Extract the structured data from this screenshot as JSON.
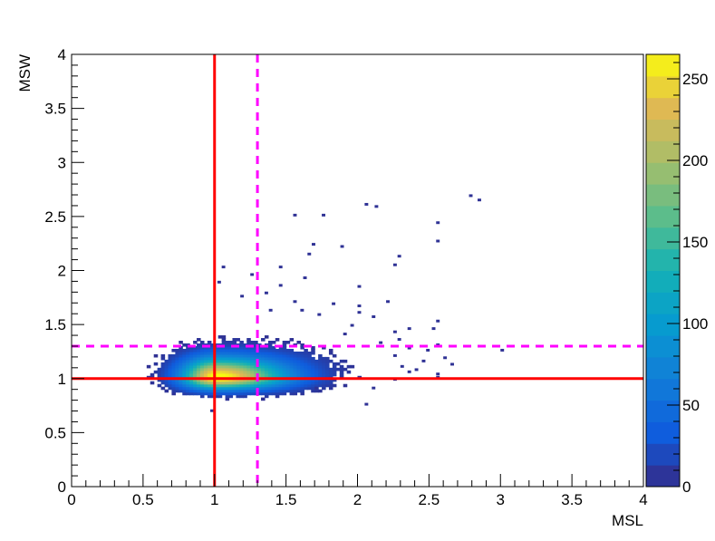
{
  "chart_data": {
    "type": "heatmap",
    "title": "",
    "xlabel": "MSL",
    "ylabel": "MSW",
    "xlim": [
      0,
      4
    ],
    "ylim": [
      0,
      4
    ],
    "x_ticks": [
      "0",
      "0.5",
      "1",
      "1.5",
      "2",
      "2.5",
      "3",
      "3.5",
      "4"
    ],
    "y_ticks": [
      "0",
      "0.5",
      "1",
      "1.5",
      "2",
      "2.5",
      "3",
      "3.5",
      "4"
    ],
    "colorbar": {
      "range": [
        0,
        265
      ],
      "ticks": [
        "0",
        "50",
        "100",
        "150",
        "200",
        "250"
      ]
    },
    "cut_lines": [
      {
        "orientation": "vertical",
        "value": 1.0,
        "style": "solid",
        "color": "#ff0000"
      },
      {
        "orientation": "horizontal",
        "value": 1.0,
        "style": "solid",
        "color": "#ff0000"
      },
      {
        "orientation": "vertical",
        "value": 1.3,
        "style": "dashed",
        "color": "#ff00ff"
      },
      {
        "orientation": "horizontal",
        "value": 1.3,
        "style": "dashed",
        "color": "#ff00ff"
      }
    ],
    "peak": {
      "x": 1.0,
      "y": 1.0,
      "count": 265
    },
    "outlier_points": [
      [
        2.78,
        2.68
      ],
      [
        2.84,
        2.64
      ],
      [
        2.05,
        2.6
      ],
      [
        2.12,
        2.58
      ],
      [
        1.55,
        2.5
      ],
      [
        1.75,
        2.5
      ],
      [
        2.55,
        2.43
      ],
      [
        2.55,
        2.26
      ],
      [
        1.68,
        2.23
      ],
      [
        1.88,
        2.21
      ],
      [
        1.65,
        2.14
      ],
      [
        2.28,
        2.12
      ],
      [
        2.25,
        2.04
      ],
      [
        1.45,
        2.02
      ],
      [
        1.05,
        2.02
      ],
      [
        1.25,
        1.95
      ],
      [
        1.62,
        1.92
      ],
      [
        1.02,
        1.88
      ],
      [
        1.45,
        1.85
      ],
      [
        2.0,
        1.84
      ],
      [
        1.35,
        1.78
      ],
      [
        1.18,
        1.75
      ],
      [
        1.55,
        1.7
      ],
      [
        2.2,
        1.7
      ],
      [
        1.82,
        1.68
      ],
      [
        2.0,
        1.66
      ],
      [
        1.38,
        1.62
      ],
      [
        2.0,
        1.6
      ],
      [
        1.72,
        1.58
      ],
      [
        2.1,
        1.56
      ],
      [
        2.55,
        1.52
      ],
      [
        1.95,
        1.48
      ],
      [
        2.35,
        1.45
      ],
      [
        2.52,
        1.45
      ],
      [
        2.25,
        1.42
      ],
      [
        1.9,
        1.4
      ],
      [
        2.28,
        1.35
      ],
      [
        2.15,
        1.32
      ],
      [
        2.35,
        1.27
      ],
      [
        2.55,
        1.3
      ],
      [
        2.48,
        1.25
      ],
      [
        2.25,
        1.2
      ],
      [
        2.6,
        1.18
      ],
      [
        3.0,
        1.25
      ],
      [
        2.3,
        1.1
      ],
      [
        2.35,
        1.05
      ],
      [
        2.55,
        1.03
      ],
      [
        2.1,
        0.9
      ],
      [
        2.05,
        0.75
      ],
      [
        2.25,
        0.98
      ],
      [
        0.97,
        0.69
      ],
      [
        1.7,
        0.9
      ],
      [
        2.4,
        1.07
      ],
      [
        2.45,
        1.15
      ],
      [
        2.65,
        1.12
      ],
      [
        2.55,
        1.0
      ],
      [
        1.6,
        1.62
      ]
    ]
  }
}
